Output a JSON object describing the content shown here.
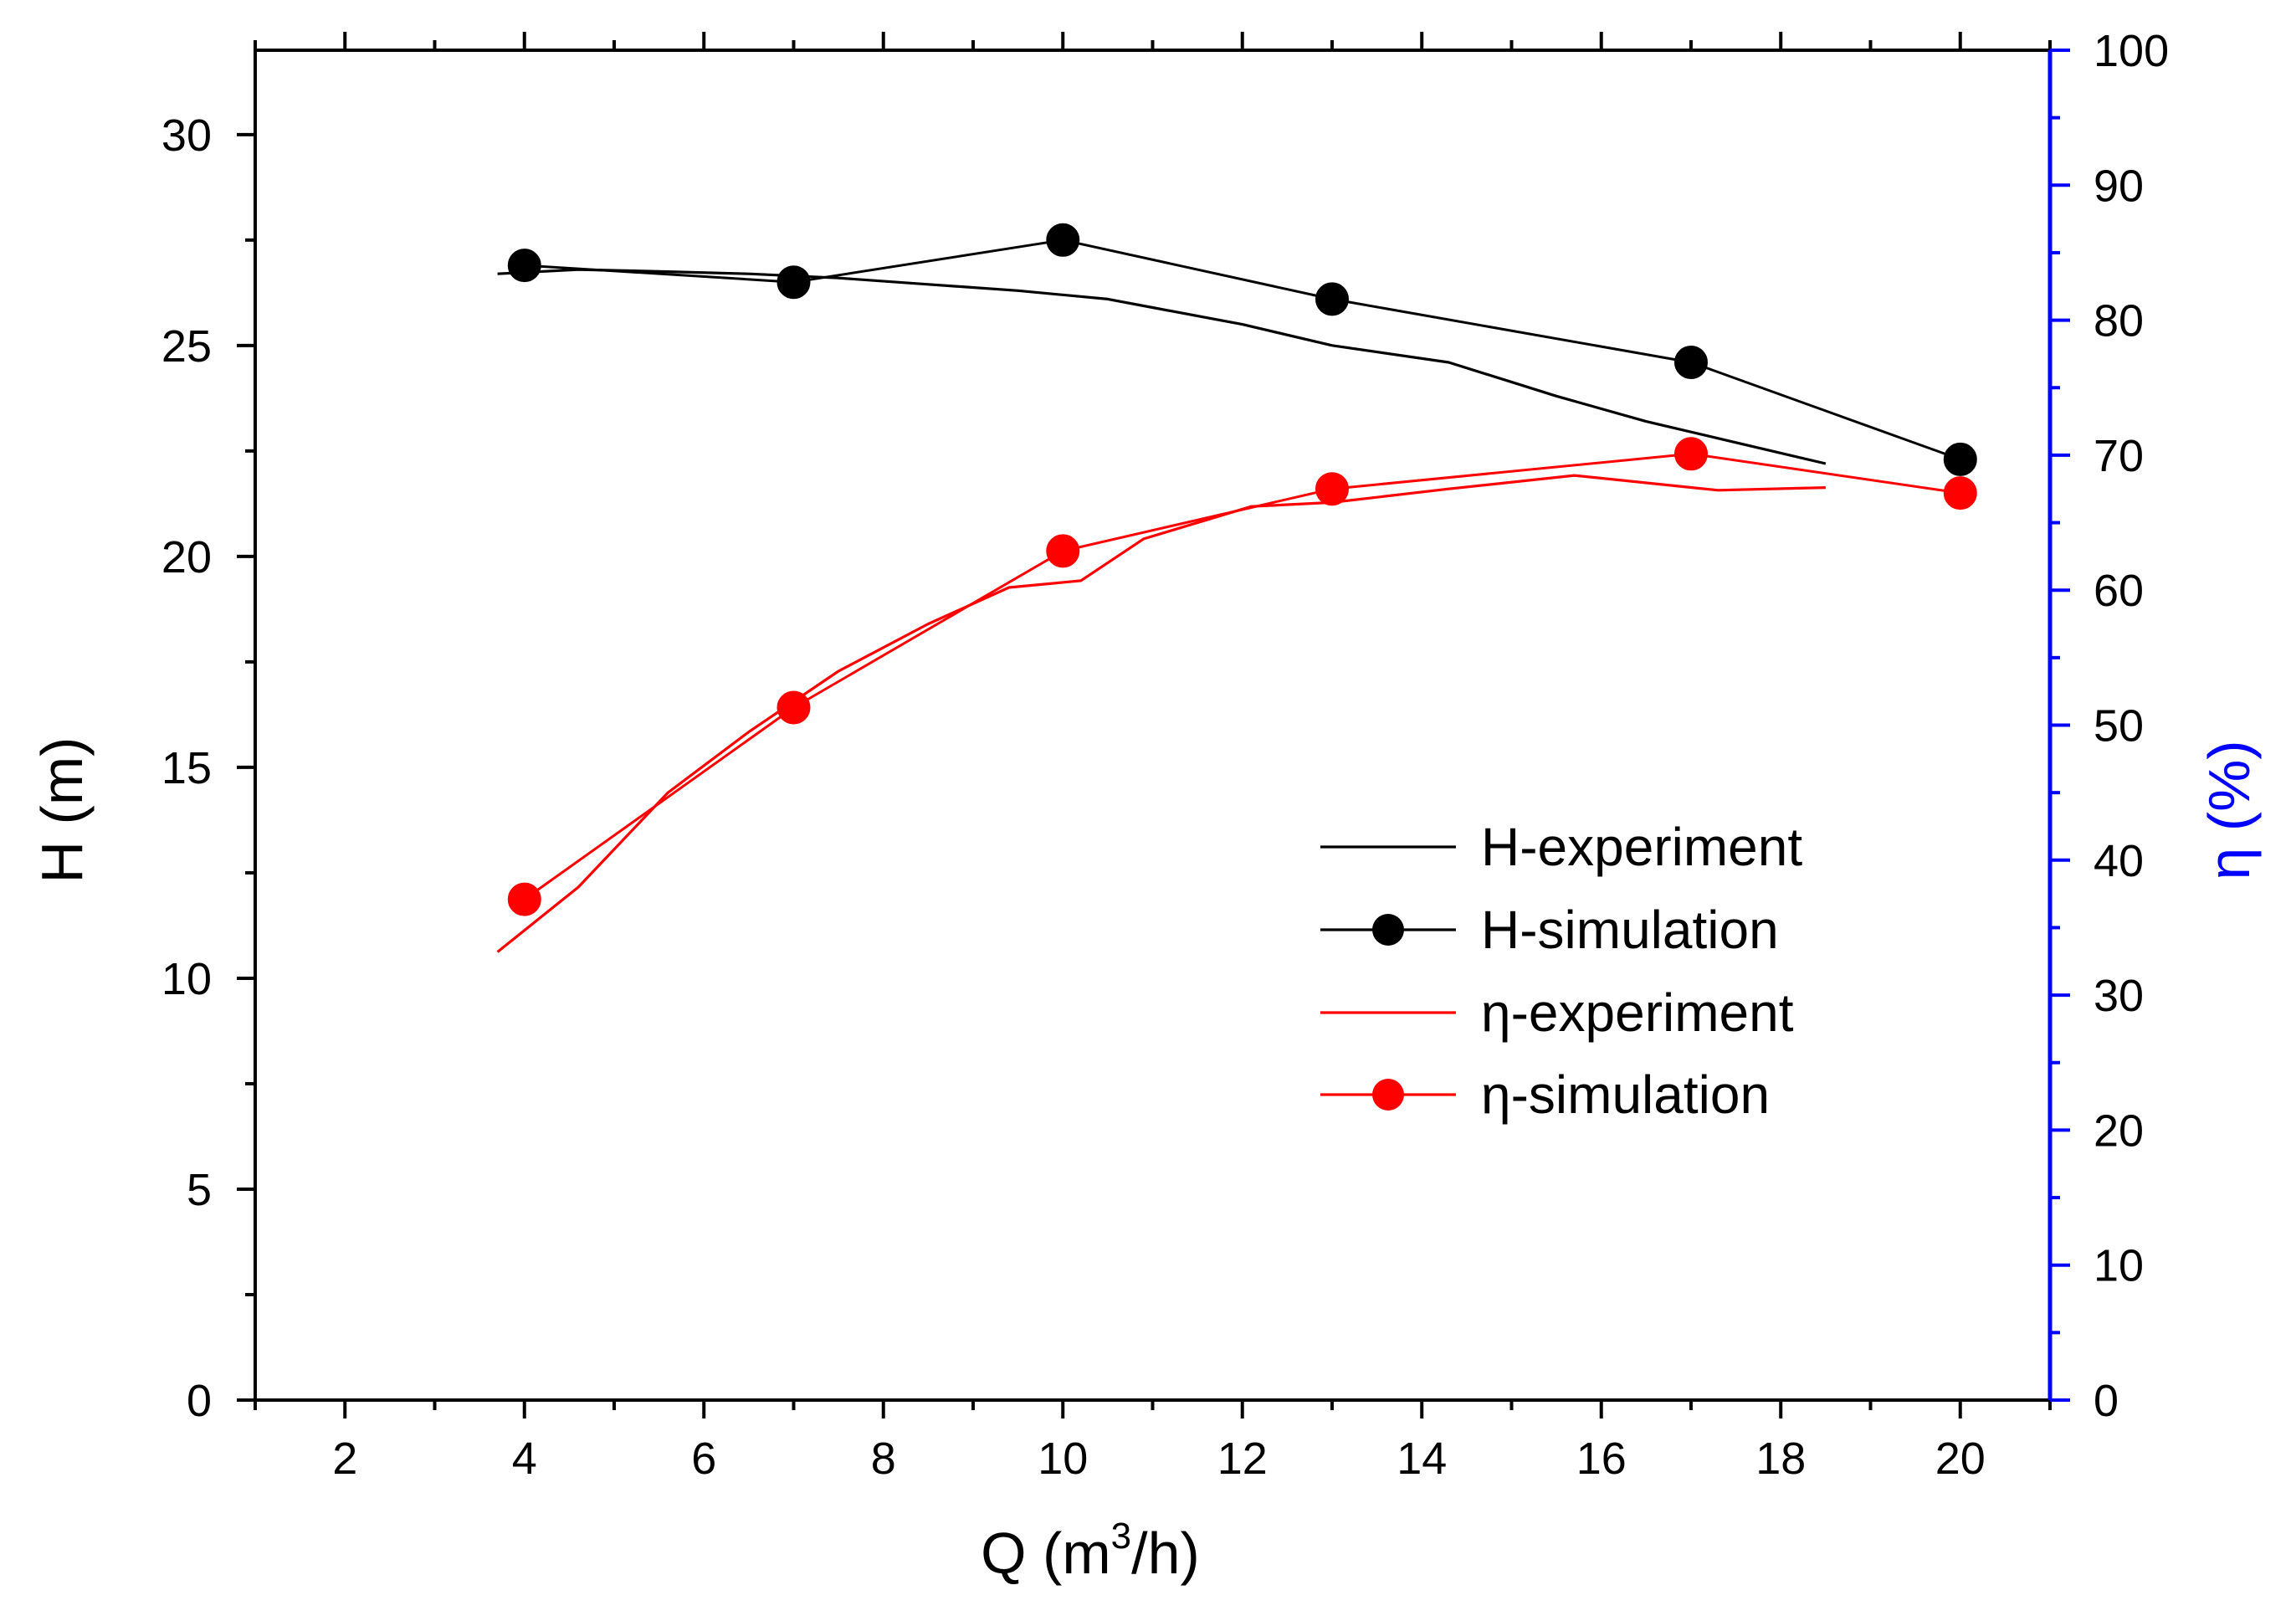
{
  "colors": {
    "background": "#ffffff",
    "axis": "#000000",
    "right_axis": "#0000ff",
    "head_series": "#000000",
    "efficiency_series": "#ff0000"
  },
  "chart_data": {
    "type": "line",
    "title": "",
    "xlabel": "Q (m",
    "xlabel_sup": "3",
    "xlabel_tail": "/h)",
    "ylabel_left": "H (m)",
    "ylabel_right": "η (%)",
    "xlim": [
      1,
      21
    ],
    "ylim_left": [
      0,
      32
    ],
    "ylim_right": [
      0,
      100
    ],
    "x_ticks": [
      2,
      4,
      6,
      8,
      10,
      12,
      14,
      16,
      18,
      20
    ],
    "x_tick_labels": [
      "2",
      "4",
      "6",
      "8",
      "10",
      "12",
      "14",
      "16",
      "18",
      "20"
    ],
    "y_left_ticks": [
      0,
      5,
      10,
      15,
      20,
      25,
      30
    ],
    "y_left_tick_labels": [
      "0",
      "5",
      "10",
      "15",
      "20",
      "25",
      "30"
    ],
    "y_right_ticks": [
      0,
      10,
      20,
      30,
      40,
      50,
      60,
      70,
      80,
      90,
      100
    ],
    "y_right_tick_labels": [
      "0",
      "10",
      "20",
      "30",
      "40",
      "50",
      "60",
      "70",
      "80",
      "90",
      "100"
    ],
    "legend_position": "center-right",
    "series": [
      {
        "name": "H-experiment",
        "axis": "left",
        "marker": "none",
        "color": "#000000",
        "x": [
          3.7,
          4.6,
          5.6,
          6.5,
          7.5,
          8.5,
          9.5,
          10.5,
          11.0,
          12.0,
          13.0,
          14.3,
          15.5,
          16.5,
          17.5,
          18.5
        ],
        "y": [
          26.7,
          26.8,
          26.75,
          26.7,
          26.6,
          26.45,
          26.3,
          26.1,
          25.9,
          25.5,
          25.0,
          24.6,
          23.8,
          23.2,
          22.7,
          22.2
        ]
      },
      {
        "name": "H-simulation",
        "axis": "left",
        "marker": "circle",
        "color": "#000000",
        "x": [
          4,
          7,
          10,
          13,
          17,
          20
        ],
        "y": [
          26.9,
          26.5,
          27.5,
          26.1,
          24.6,
          22.3
        ]
      },
      {
        "name": "η-experiment",
        "axis": "right",
        "marker": "none",
        "color": "#ff0000",
        "x": [
          3.7,
          4.6,
          5.6,
          6.5,
          7.5,
          8.5,
          9.4,
          10.2,
          10.9,
          12.1,
          13.0,
          14.3,
          15.7,
          17.3,
          18.5
        ],
        "y": [
          33.2,
          38.0,
          45.0,
          49.5,
          54.0,
          57.5,
          60.2,
          60.7,
          63.8,
          66.2,
          66.5,
          67.5,
          68.5,
          67.4,
          67.6
        ]
      },
      {
        "name": "η-simulation",
        "axis": "right",
        "marker": "circle",
        "color": "#ff0000",
        "x": [
          4,
          7,
          10,
          13,
          17,
          20
        ],
        "y": [
          37.1,
          51.3,
          62.9,
          67.5,
          70.1,
          67.2
        ]
      }
    ]
  }
}
